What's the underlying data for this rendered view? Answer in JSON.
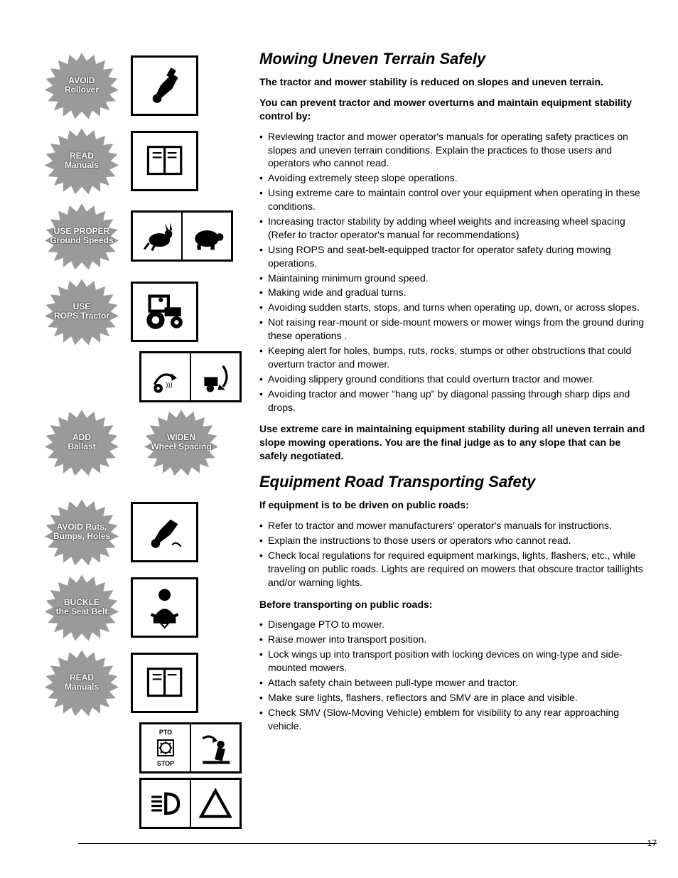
{
  "colors": {
    "text": "#000000",
    "bg": "#ffffff",
    "burst_fill": "#9a9a9a",
    "burst_text": "#ffffff"
  },
  "bursts": {
    "avoid_rollover": "AVOID\nRollover",
    "read_manuals": "READ\nManuals",
    "use_proper": "USE PROPER\nGround Speeds",
    "use_rops": "USE\nROPS Tractor",
    "add_ballast": "ADD\nBallast",
    "widen_wheel": "WIDEN\nWheel Spacing",
    "avoid_ruts": "AVOID Ruts,\nBumps, Holes",
    "buckle": "BUCKLE\nthe Seat Belt",
    "read_manuals2": "READ\nManuals"
  },
  "icon_labels": {
    "pto": "PTO",
    "stop": "STOP"
  },
  "section1": {
    "title": "Mowing Uneven Terrain Safely",
    "intro": "The tractor and mower stability is reduced on slopes and uneven terrain.",
    "lead": "You can prevent tractor and mower overturns and maintain equipment stability control by:",
    "bullets": [
      "Reviewing tractor and mower operator's manuals for operating safety practices on slopes and uneven terrain conditions. Explain the practices to those users and operators who cannot read.",
      "Avoiding extremely steep slope operations.",
      "Using extreme care to maintain control over your equipment when operating in these conditions.",
      "Increasing tractor stability by adding wheel weights and increasing wheel spacing (Refer to tractor operator's manual for recommendations)",
      "Using ROPS and seat-belt-equipped tractor for operator safety during mowing operations.",
      "Maintaining minimum ground speed.",
      "Making wide and gradual turns.",
      "Avoiding sudden starts, stops, and turns when operating up, down, or across slopes.",
      "Not raising rear-mount or side-mount mowers or mower wings from the ground during these operations .",
      "Keeping alert for holes, bumps, ruts, rocks, stumps or other obstructions that could overturn tractor and mower.",
      "Avoiding slippery ground conditions that could overturn tractor and mower.",
      "Avoiding tractor and mower \"hang up\" by diagonal passing through sharp dips and drops."
    ],
    "closing": "Use extreme care in maintaining equipment stability during all uneven terrain and slope mowing operations. You are the final judge as to any slope that can be safely negotiated."
  },
  "section2": {
    "title": "Equipment Road Transporting Safety",
    "lead1": "If equipment is to be driven on public roads:",
    "bullets1": [
      "Refer to tractor and mower manufacturers' operator's manuals for instructions.",
      "Explain the instructions to those users or operators who cannot read.",
      "Check local regulations for required equipment markings, lights, flashers, etc., while traveling on public roads. Lights are required on mowers that obscure tractor taillights and/or warning lights."
    ],
    "lead2": "Before transporting on public roads:",
    "bullets2": [
      "Disengage PTO to mower.",
      "Raise mower into transport position.",
      "Lock wings up into transport position with locking devices on wing-type and side-mounted mowers.",
      "Attach safety chain between pull-type mower and tractor.",
      "Make sure lights, flashers, reflectors and SMV are in place and visible.",
      "Check SMV (Slow-Moving Vehicle) emblem for visibility to any rear approaching vehicle."
    ]
  },
  "page_number": "17"
}
